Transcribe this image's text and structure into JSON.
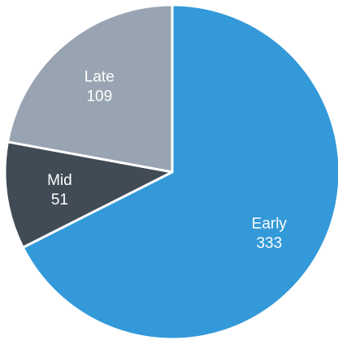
{
  "chart_data": {
    "type": "pie",
    "start_angle_deg": 0,
    "direction": "clockwise",
    "categories": [
      "Early",
      "Mid",
      "Late"
    ],
    "values": [
      333,
      51,
      109
    ],
    "colors": [
      "#3399d9",
      "#414b56",
      "#98a4b2"
    ],
    "show_values": true,
    "legend": "none"
  }
}
